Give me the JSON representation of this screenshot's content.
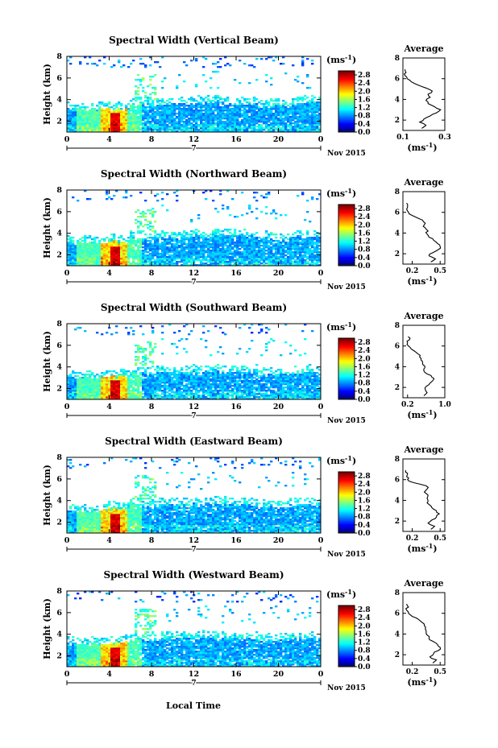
{
  "figure": {
    "xlabel": "Local Time",
    "colorbar_unit": "(ms",
    "colorbar_unit_exp": "-1",
    "date_label": "Nov 2015",
    "day_label": "7"
  },
  "chart_data": [
    {
      "type": "heatmap",
      "title": "Spectral Width (Vertical Beam)",
      "xlabel": "Local Time",
      "ylabel": "Height (km)",
      "x_ticks": [
        "0",
        "4",
        "8",
        "12",
        "16",
        "20",
        "0"
      ],
      "y_ticks": [
        "2",
        "4",
        "6",
        "8"
      ],
      "xlim": [
        0,
        24
      ],
      "ylim": [
        1,
        8
      ],
      "colorbar_ticks": [
        "0.0",
        "0.4",
        "0.8",
        "1.2",
        "1.6",
        "2.0",
        "2.4",
        "2.8"
      ],
      "colorbar_range": [
        0,
        3.0
      ],
      "colormap": "jet",
      "convective_core_time": 4.5,
      "boundary_layer_top_km": [
        3.1,
        3.1,
        3.5,
        3.6,
        3.7,
        3.6,
        3.4,
        3.7
      ],
      "average": {
        "title": "Average",
        "xlabel": "(ms",
        "xlabel_exp": "-1",
        "x_ticks": [
          "0.1",
          "0.3"
        ],
        "xlim": [
          0.1,
          0.3
        ],
        "y_ticks": [
          "2",
          "4",
          "6",
          "8"
        ],
        "height_km": [
          1.2,
          1.5,
          1.8,
          2.1,
          2.4,
          2.7,
          3.0,
          3.3,
          3.6,
          3.9,
          4.2,
          4.5,
          4.8,
          5.1,
          5.4,
          5.7,
          6.0,
          6.3,
          6.6,
          6.9
        ],
        "value": [
          0.19,
          0.21,
          0.18,
          0.2,
          0.23,
          0.26,
          0.28,
          0.25,
          0.22,
          0.21,
          0.23,
          0.22,
          0.24,
          0.21,
          0.17,
          0.14,
          0.12,
          0.11,
          0.115,
          0.11
        ]
      }
    },
    {
      "type": "heatmap",
      "title": "Spectral Width (Northward Beam)",
      "xlabel": "Local Time",
      "ylabel": "Height (km)",
      "x_ticks": [
        "0",
        "4",
        "8",
        "12",
        "16",
        "20",
        "0"
      ],
      "y_ticks": [
        "2",
        "4",
        "6",
        "8"
      ],
      "xlim": [
        0,
        24
      ],
      "ylim": [
        1,
        8
      ],
      "colorbar_ticks": [
        "0.0",
        "0.4",
        "0.8",
        "1.2",
        "1.6",
        "2.0",
        "2.4",
        "2.8"
      ],
      "colorbar_range": [
        0,
        3.0
      ],
      "colormap": "jet",
      "convective_core_time": 4.5,
      "boundary_layer_top_km": [
        3.1,
        3.2,
        3.5,
        3.6,
        3.8,
        3.7,
        3.5,
        3.7
      ],
      "average": {
        "title": "Average",
        "xlabel": "(ms",
        "xlabel_exp": "-1",
        "x_ticks": [
          "0.2",
          "0.5"
        ],
        "xlim": [
          0.1,
          0.55
        ],
        "y_ticks": [
          "2",
          "4",
          "6",
          "8"
        ],
        "height_km": [
          1.2,
          1.5,
          1.8,
          2.1,
          2.4,
          2.7,
          3.0,
          3.3,
          3.6,
          3.9,
          4.2,
          4.5,
          4.8,
          5.1,
          5.4,
          5.7,
          6.0,
          6.3,
          6.6,
          6.9
        ],
        "value": [
          0.4,
          0.45,
          0.38,
          0.42,
          0.48,
          0.5,
          0.47,
          0.43,
          0.38,
          0.36,
          0.37,
          0.34,
          0.33,
          0.32,
          0.27,
          0.2,
          0.16,
          0.14,
          0.15,
          0.14
        ]
      }
    },
    {
      "type": "heatmap",
      "title": "Spectral Width (Southward Beam)",
      "xlabel": "Local Time",
      "ylabel": "Height (km)",
      "x_ticks": [
        "0",
        "4",
        "8",
        "12",
        "16",
        "20",
        "0"
      ],
      "y_ticks": [
        "2",
        "4",
        "6",
        "8"
      ],
      "xlim": [
        0,
        24
      ],
      "ylim": [
        1,
        8
      ],
      "colorbar_ticks": [
        "0.0",
        "0.4",
        "0.8",
        "1.2",
        "1.6",
        "2.0",
        "2.4",
        "2.8"
      ],
      "colorbar_range": [
        0,
        3.0
      ],
      "colormap": "jet",
      "convective_core_time": 4.5,
      "boundary_layer_top_km": [
        3.0,
        3.1,
        3.4,
        3.5,
        3.6,
        3.5,
        3.3,
        3.5
      ],
      "average": {
        "title": "Average",
        "xlabel": "(ms",
        "xlabel_exp": "-1",
        "x_ticks": [
          "0.2",
          "1.0"
        ],
        "xlim": [
          0.1,
          1.0
        ],
        "y_ticks": [
          "2",
          "4",
          "6",
          "8"
        ],
        "height_km": [
          1.2,
          1.5,
          1.8,
          2.1,
          2.4,
          2.7,
          3.0,
          3.3,
          3.6,
          3.9,
          4.2,
          4.5,
          4.8,
          5.1,
          5.4,
          5.7,
          6.0,
          6.3,
          6.6,
          6.9
        ],
        "value": [
          0.55,
          0.62,
          0.58,
          0.6,
          0.68,
          0.75,
          0.72,
          0.62,
          0.55,
          0.57,
          0.53,
          0.52,
          0.49,
          0.47,
          0.38,
          0.28,
          0.22,
          0.2,
          0.24,
          0.21
        ]
      }
    },
    {
      "type": "heatmap",
      "title": "Spectral Width (Eastward Beam)",
      "xlabel": "Local Time",
      "ylabel": "Height (km)",
      "x_ticks": [
        "0",
        "4",
        "8",
        "12",
        "16",
        "20",
        "0"
      ],
      "y_ticks": [
        "2",
        "4",
        "6",
        "8"
      ],
      "xlim": [
        0,
        24
      ],
      "ylim": [
        1,
        8
      ],
      "colorbar_ticks": [
        "0.0",
        "0.4",
        "0.8",
        "1.2",
        "1.6",
        "2.0",
        "2.4",
        "2.8"
      ],
      "colorbar_range": [
        0,
        3.0
      ],
      "colormap": "jet",
      "convective_core_time": 4.5,
      "boundary_layer_top_km": [
        3.0,
        3.2,
        3.5,
        3.6,
        3.7,
        3.6,
        3.4,
        3.6
      ],
      "average": {
        "title": "Average",
        "xlabel": "(ms",
        "xlabel_exp": "-1",
        "x_ticks": [
          "0.2",
          "0.5"
        ],
        "xlim": [
          0.1,
          0.55
        ],
        "y_ticks": [
          "2",
          "4",
          "6",
          "8"
        ],
        "height_km": [
          1.2,
          1.5,
          1.8,
          2.1,
          2.4,
          2.7,
          3.0,
          3.3,
          3.6,
          3.9,
          4.2,
          4.5,
          4.8,
          5.1,
          5.4,
          5.7,
          6.0,
          6.3,
          6.6,
          6.9
        ],
        "value": [
          0.4,
          0.44,
          0.37,
          0.41,
          0.46,
          0.49,
          0.46,
          0.41,
          0.38,
          0.37,
          0.36,
          0.37,
          0.33,
          0.36,
          0.35,
          0.22,
          0.15,
          0.14,
          0.15,
          0.13
        ]
      }
    },
    {
      "type": "heatmap",
      "title": "Spectral Width (Westward Beam)",
      "xlabel": "Local Time",
      "ylabel": "Height (km)",
      "x_ticks": [
        "0",
        "4",
        "8",
        "12",
        "16",
        "20",
        "0"
      ],
      "y_ticks": [
        "2",
        "4",
        "6",
        "8"
      ],
      "xlim": [
        0,
        24
      ],
      "ylim": [
        1,
        8
      ],
      "colorbar_ticks": [
        "0.0",
        "0.4",
        "0.8",
        "1.2",
        "1.6",
        "2.0",
        "2.4",
        "2.8"
      ],
      "colorbar_range": [
        0,
        3.0
      ],
      "colormap": "jet",
      "convective_core_time": 4.5,
      "boundary_layer_top_km": [
        3.1,
        3.2,
        3.5,
        3.6,
        3.7,
        3.6,
        3.4,
        3.6
      ],
      "average": {
        "title": "Average",
        "xlabel": "(ms",
        "xlabel_exp": "-1",
        "x_ticks": [
          "0.2",
          "0.5"
        ],
        "xlim": [
          0.1,
          0.55
        ],
        "y_ticks": [
          "2",
          "4",
          "6",
          "8"
        ],
        "height_km": [
          1.2,
          1.5,
          1.8,
          2.1,
          2.4,
          2.7,
          3.0,
          3.3,
          3.6,
          3.9,
          4.2,
          4.5,
          4.8,
          5.1,
          5.4,
          5.7,
          6.0,
          6.3,
          6.6,
          6.9
        ],
        "value": [
          0.42,
          0.46,
          0.39,
          0.43,
          0.48,
          0.5,
          0.47,
          0.42,
          0.38,
          0.36,
          0.35,
          0.34,
          0.33,
          0.31,
          0.27,
          0.2,
          0.16,
          0.14,
          0.16,
          0.14
        ]
      }
    }
  ]
}
